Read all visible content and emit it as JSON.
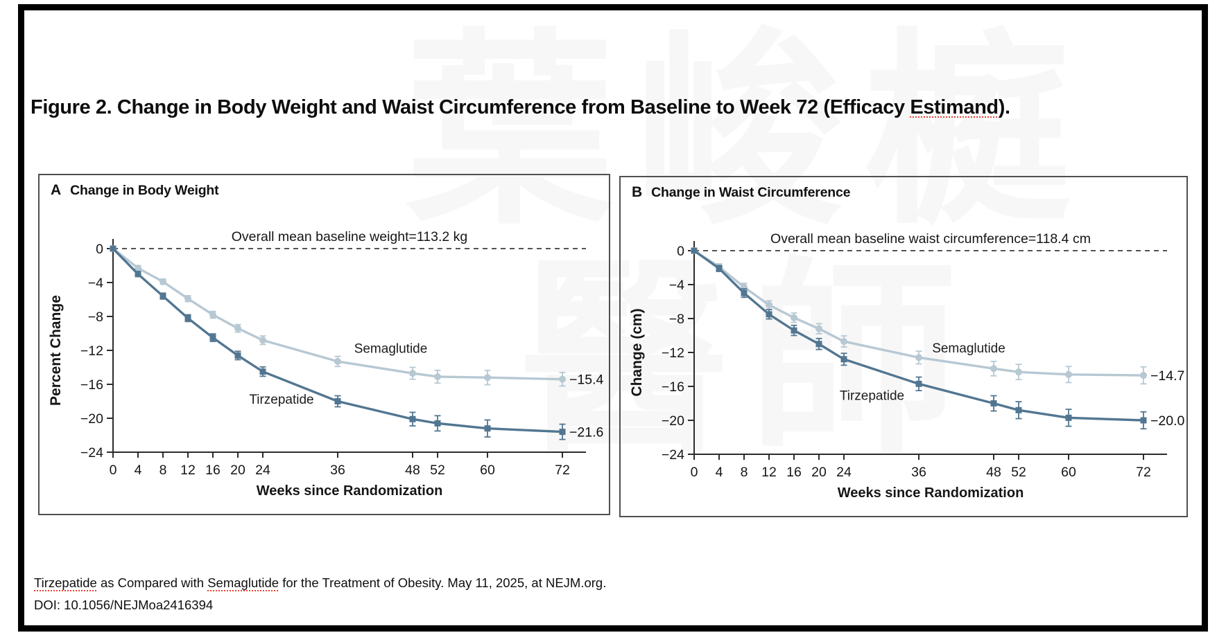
{
  "title": "Figure 2. Change in Body Weight and Waist Circumference from Baseline to Week 72 (Efficacy Estimand).",
  "watermark": {
    "line1": "葉峻榳",
    "line2": "醫師"
  },
  "footer": {
    "line1": "Tirzepatide as Compared with Semaglutide for the Treatment of Obesity. May 11, 2025, at NEJM.org.",
    "line2": "DOI: 10.1056/NEJMoa2416394"
  },
  "spellcheck_words": [
    "Tirzepatide",
    "Semaglutide",
    "Estimand"
  ],
  "colors": {
    "tirzepatide": "#527691",
    "semaglutide": "#b7c8d3",
    "axis": "#2b2b2b",
    "panel_border": "#4f4f4f",
    "frame": "#000000",
    "spellcheck_underline": "#e8412f"
  },
  "chart_data": [
    {
      "type": "line",
      "panel_label": "A",
      "panel_title": "Change in Body Weight",
      "baseline_annotation": "Overall mean baseline weight=113.2 kg",
      "xlabel": "Weeks since Randomization",
      "ylabel": "Percent Change",
      "x": [
        0,
        4,
        8,
        12,
        16,
        20,
        24,
        36,
        48,
        52,
        60,
        72
      ],
      "xlim": [
        0,
        76
      ],
      "ylim": [
        -24,
        0
      ],
      "yticks": [
        0,
        -4,
        -8,
        -12,
        -16,
        -20,
        -24
      ],
      "grid": false,
      "legend": "inline-labels",
      "series": [
        {
          "name": "Semaglutide",
          "marker": "circle",
          "color": "#b7c8d3",
          "values": [
            0,
            -2.3,
            -3.9,
            -5.9,
            -7.8,
            -9.4,
            -10.8,
            -13.3,
            -14.7,
            -15.1,
            -15.2,
            -15.4
          ],
          "errors": [
            0,
            0.3,
            0.3,
            0.35,
            0.4,
            0.45,
            0.5,
            0.6,
            0.7,
            0.75,
            0.85,
            0.8
          ],
          "end_label": "−15.4",
          "label_week": 44.5,
          "label_value": -12.3
        },
        {
          "name": "Tirzepatide",
          "marker": "square",
          "color": "#527691",
          "values": [
            0,
            -3.0,
            -5.6,
            -8.2,
            -10.5,
            -12.6,
            -14.5,
            -18.0,
            -20.1,
            -20.6,
            -21.2,
            -21.6
          ],
          "errors": [
            0,
            0.3,
            0.35,
            0.4,
            0.45,
            0.5,
            0.55,
            0.65,
            0.8,
            0.9,
            1.0,
            0.9
          ],
          "end_label": "−21.6",
          "label_week": 27,
          "label_value": -18.3
        }
      ]
    },
    {
      "type": "line",
      "panel_label": "B",
      "panel_title": "Change in Waist Circumference",
      "baseline_annotation": "Overall mean baseline waist circumference=118.4 cm",
      "xlabel": "Weeks since Randomization",
      "ylabel": "Change (cm)",
      "x": [
        0,
        4,
        8,
        12,
        16,
        20,
        24,
        36,
        48,
        52,
        60,
        72
      ],
      "xlim": [
        0,
        76
      ],
      "ylim": [
        -24,
        0
      ],
      "yticks": [
        0,
        -4,
        -8,
        -12,
        -16,
        -20,
        -24
      ],
      "grid": false,
      "legend": "inline-labels",
      "series": [
        {
          "name": "Semaglutide",
          "marker": "circle",
          "color": "#b7c8d3",
          "values": [
            0,
            -1.9,
            -4.3,
            -6.4,
            -7.9,
            -9.2,
            -10.7,
            -12.6,
            -13.9,
            -14.3,
            -14.6,
            -14.7
          ],
          "errors": [
            0,
            0.35,
            0.45,
            0.5,
            0.55,
            0.6,
            0.65,
            0.75,
            0.85,
            0.9,
            0.95,
            1.0
          ],
          "end_label": "−14.7",
          "label_week": 44,
          "label_value": -12.0
        },
        {
          "name": "Tirzepatide",
          "marker": "square",
          "color": "#527691",
          "values": [
            0,
            -2.1,
            -5.0,
            -7.5,
            -9.4,
            -11.0,
            -12.8,
            -15.7,
            -18.0,
            -18.8,
            -19.7,
            -20.0
          ],
          "errors": [
            0,
            0.35,
            0.5,
            0.55,
            0.6,
            0.65,
            0.7,
            0.8,
            0.9,
            1.0,
            1.0,
            1.0
          ],
          "end_label": "−20.0",
          "label_week": 28.5,
          "label_value": -17.6
        }
      ]
    }
  ]
}
